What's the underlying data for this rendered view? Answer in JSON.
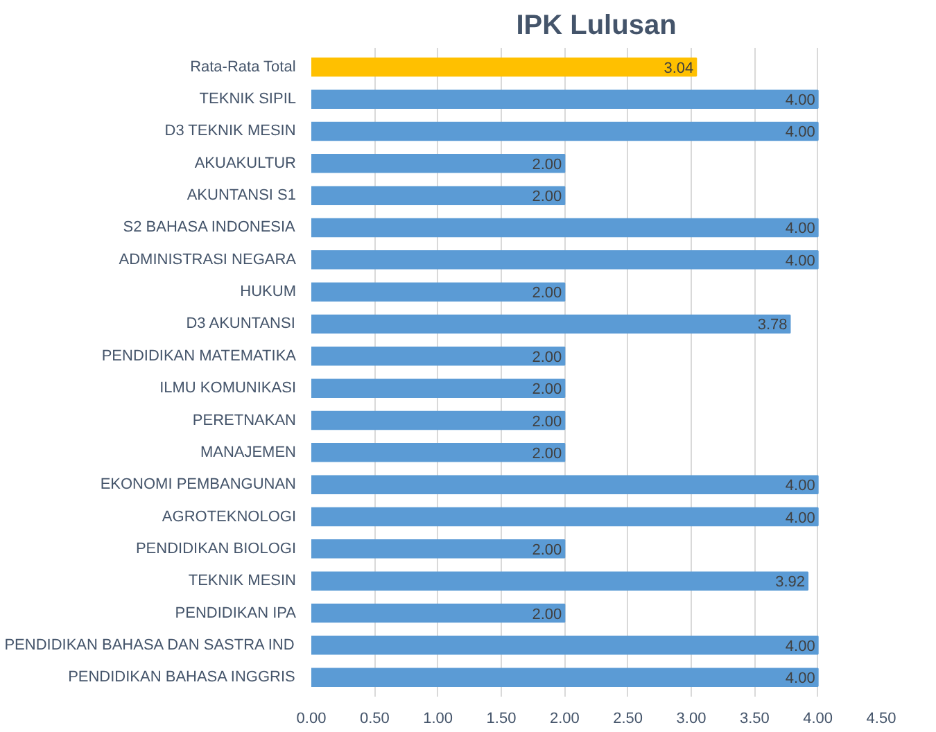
{
  "chart_data": {
    "type": "bar",
    "orientation": "horizontal",
    "title": "IPK Lulusan",
    "categories": [
      "Rata-Rata Total",
      "TEKNIK SIPIL",
      "D3 TEKNIK MESIN",
      "AKUAKULTUR",
      "AKUNTANSI S1",
      "S2 BAHASA INDONESIA",
      "ADMINISTRASI NEGARA",
      "HUKUM",
      "D3 AKUNTANSI",
      "PENDIDIKAN MATEMATIKA",
      "ILMU KOMUNIKASI",
      "PERETNAKAN",
      "MANAJEMEN",
      "EKONOMI PEMBANGUNAN",
      "AGROTEKNOLOGI",
      "PENDIDIKAN BIOLOGI",
      "TEKNIK MESIN",
      "PENDIDIKAN IPA",
      "PENDIDIKAN BAHASA DAN SASTRA IND",
      "PENDIDIKAN BAHASA INGGRIS"
    ],
    "values": [
      3.04,
      4.0,
      4.0,
      2.0,
      2.0,
      4.0,
      4.0,
      2.0,
      3.78,
      2.0,
      2.0,
      2.0,
      2.0,
      4.0,
      4.0,
      2.0,
      3.92,
      2.0,
      4.0,
      4.0
    ],
    "colors": [
      "#ffc000",
      "#5b9bd5",
      "#5b9bd5",
      "#5b9bd5",
      "#5b9bd5",
      "#5b9bd5",
      "#5b9bd5",
      "#5b9bd5",
      "#5b9bd5",
      "#5b9bd5",
      "#5b9bd5",
      "#5b9bd5",
      "#5b9bd5",
      "#5b9bd5",
      "#5b9bd5",
      "#5b9bd5",
      "#5b9bd5",
      "#5b9bd5",
      "#5b9bd5",
      "#5b9bd5"
    ],
    "value_labels": [
      "3.04",
      "4.00",
      "4.00",
      "2.00",
      "2.00",
      "4.00",
      "4.00",
      "2.00",
      "3.78",
      "2.00",
      "2.00",
      "2.00",
      "2.00",
      "4.00",
      "4.00",
      "2.00",
      "3.92",
      "2.00",
      "4.00",
      "4.00"
    ],
    "xlim": [
      0,
      4.5
    ],
    "xticks": [
      {
        "value": 0,
        "label": "0.00"
      },
      {
        "value": 0.5,
        "label": "0.50"
      },
      {
        "value": 1,
        "label": "1.00"
      },
      {
        "value": 1.5,
        "label": "1.50"
      },
      {
        "value": 2,
        "label": "2.00"
      },
      {
        "value": 2.5,
        "label": "2.50"
      },
      {
        "value": 3,
        "label": "3.00"
      },
      {
        "value": 3.5,
        "label": "3.50"
      },
      {
        "value": 4,
        "label": "4.00"
      },
      {
        "value": 4.5,
        "label": "4.50"
      }
    ],
    "grid": "x"
  }
}
